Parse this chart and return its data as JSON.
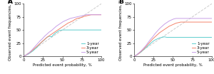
{
  "panel_A_label": "A",
  "panel_B_label": "B",
  "xlabel": "Predicted event probability, %",
  "ylabel": "Observed event frequencies, %",
  "xlim": [
    0,
    100
  ],
  "ylim": [
    0,
    100
  ],
  "xticks": [
    0,
    25,
    50,
    75,
    100
  ],
  "yticks": [
    0,
    25,
    50,
    75,
    100
  ],
  "legend_labels": [
    "1-year",
    "3-year",
    "5-year"
  ],
  "colors_1year": "#5ecece",
  "colors_3year": "#f4836b",
  "colors_5year": "#c8a0e8",
  "ref_color": "#cccccc",
  "background": "#ffffff",
  "panel_A": {
    "year1_x": [
      0,
      3,
      6,
      9,
      12,
      15,
      18,
      20,
      22,
      24,
      26,
      28,
      30,
      33,
      36,
      38,
      40,
      43,
      46,
      50,
      55,
      60,
      65,
      70,
      75,
      80,
      85,
      90,
      95,
      100
    ],
    "year1_y": [
      0,
      2,
      4,
      7,
      10,
      14,
      18,
      22,
      25,
      28,
      30,
      33,
      36,
      38,
      37,
      40,
      43,
      46,
      49,
      50,
      50,
      50,
      50,
      50,
      50,
      50,
      50,
      50,
      50,
      50
    ],
    "year3_x": [
      0,
      3,
      6,
      9,
      12,
      15,
      18,
      21,
      24,
      27,
      30,
      33,
      36,
      39,
      42,
      45,
      48,
      51,
      54,
      57,
      60,
      63,
      66,
      69,
      72,
      75,
      78,
      81,
      84,
      87,
      90,
      93,
      96,
      100
    ],
    "year3_y": [
      0,
      2,
      5,
      8,
      12,
      16,
      20,
      24,
      28,
      32,
      36,
      39,
      42,
      45,
      48,
      51,
      54,
      57,
      60,
      63,
      65,
      67,
      70,
      72,
      73,
      74,
      76,
      77,
      78,
      79,
      79,
      79,
      79,
      79
    ],
    "year5_x": [
      0,
      3,
      6,
      9,
      12,
      15,
      18,
      21,
      24,
      27,
      30,
      33,
      36,
      39,
      42,
      45,
      48,
      51,
      54,
      57,
      60,
      63,
      66,
      69,
      72,
      75,
      78,
      81,
      84,
      87,
      90,
      93,
      96,
      100
    ],
    "year5_y": [
      0,
      2,
      5,
      9,
      14,
      19,
      24,
      29,
      33,
      38,
      42,
      46,
      49,
      53,
      57,
      60,
      63,
      66,
      68,
      70,
      72,
      73,
      74,
      75,
      76,
      77,
      78,
      79,
      79,
      79,
      79,
      79,
      79,
      79
    ]
  },
  "panel_B": {
    "year1_x": [
      0,
      3,
      6,
      9,
      12,
      15,
      18,
      21,
      24,
      27,
      30,
      33,
      36,
      39,
      42,
      45,
      48,
      51,
      54,
      57,
      60,
      65,
      70,
      75,
      80,
      85,
      90,
      95,
      100
    ],
    "year1_y": [
      0,
      2,
      5,
      8,
      12,
      16,
      20,
      24,
      28,
      31,
      33,
      35,
      36,
      37,
      36,
      36,
      36,
      36,
      36,
      36,
      36,
      36,
      36,
      36,
      36,
      36,
      36,
      36,
      36
    ],
    "year3_x": [
      0,
      3,
      6,
      9,
      12,
      15,
      18,
      21,
      24,
      27,
      30,
      33,
      36,
      39,
      42,
      45,
      48,
      51,
      54,
      57,
      60,
      63,
      66,
      69,
      72,
      75,
      78,
      81,
      84,
      87,
      90,
      93,
      96,
      100
    ],
    "year3_y": [
      0,
      2,
      5,
      9,
      13,
      18,
      23,
      28,
      33,
      37,
      41,
      45,
      48,
      51,
      54,
      57,
      59,
      61,
      63,
      64,
      65,
      65,
      65,
      65,
      65,
      65,
      65,
      65,
      65,
      65,
      65,
      65,
      65,
      65
    ],
    "year5_x": [
      0,
      3,
      6,
      9,
      12,
      15,
      18,
      21,
      24,
      27,
      30,
      33,
      36,
      39,
      42,
      45,
      48,
      51,
      54,
      57,
      60,
      63,
      66,
      69,
      72,
      75,
      78,
      81,
      84,
      87,
      90,
      93,
      96,
      100
    ],
    "year5_y": [
      0,
      2,
      6,
      10,
      15,
      20,
      26,
      32,
      37,
      43,
      48,
      53,
      57,
      61,
      64,
      67,
      69,
      71,
      72,
      72,
      72,
      72,
      72,
      72,
      72,
      72,
      72,
      72,
      72,
      72,
      72,
      72,
      72,
      72
    ]
  },
  "tick_fontsize": 4.0,
  "label_fontsize": 4.0,
  "legend_fontsize": 4.0,
  "panel_label_fontsize": 6.5,
  "linewidth": 0.7,
  "ref_linewidth": 0.7
}
